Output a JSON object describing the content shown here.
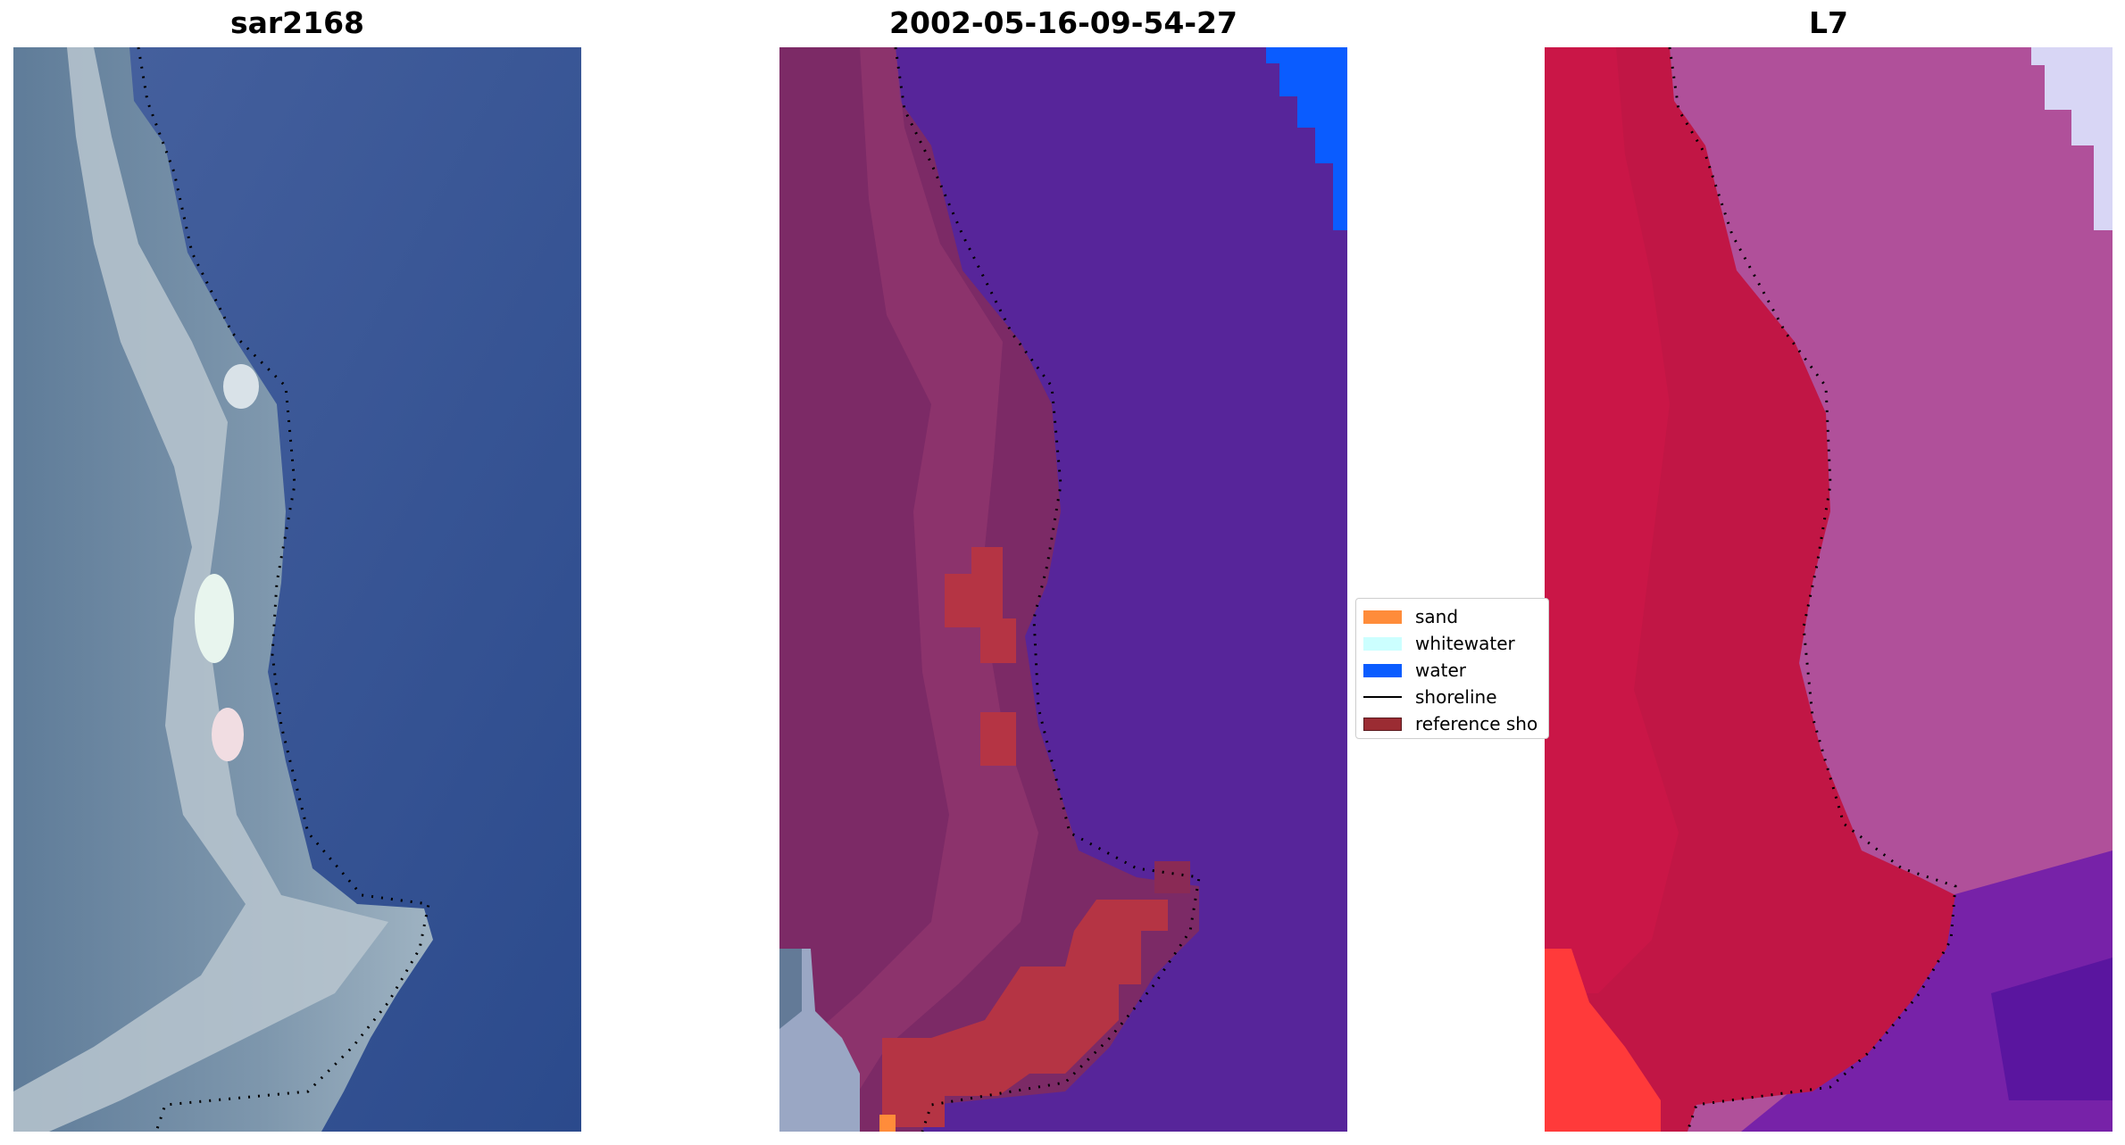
{
  "panels": [
    {
      "title": "sar2168",
      "icon": "rgb-satellite-image"
    },
    {
      "title": "2002-05-16-09-54-27",
      "icon": "classified-image"
    },
    {
      "title": "L7",
      "icon": "false-color-image"
    }
  ],
  "legend": {
    "items": [
      {
        "label": "sand",
        "color": "#ff8c3a"
      },
      {
        "label": "whitewater",
        "color": "#ccffff"
      },
      {
        "label": "water",
        "color": "#0a5cff"
      },
      {
        "label": "shoreline",
        "color": "#000000"
      },
      {
        "label": "reference sho",
        "color": "#9b2c33"
      }
    ]
  },
  "colors": {
    "water_rgb": "#3c5a9a",
    "water_class": "#57259a",
    "land_class": "#7c2a66",
    "land_l7": "#c11645",
    "water_l7": "#b0509a"
  }
}
